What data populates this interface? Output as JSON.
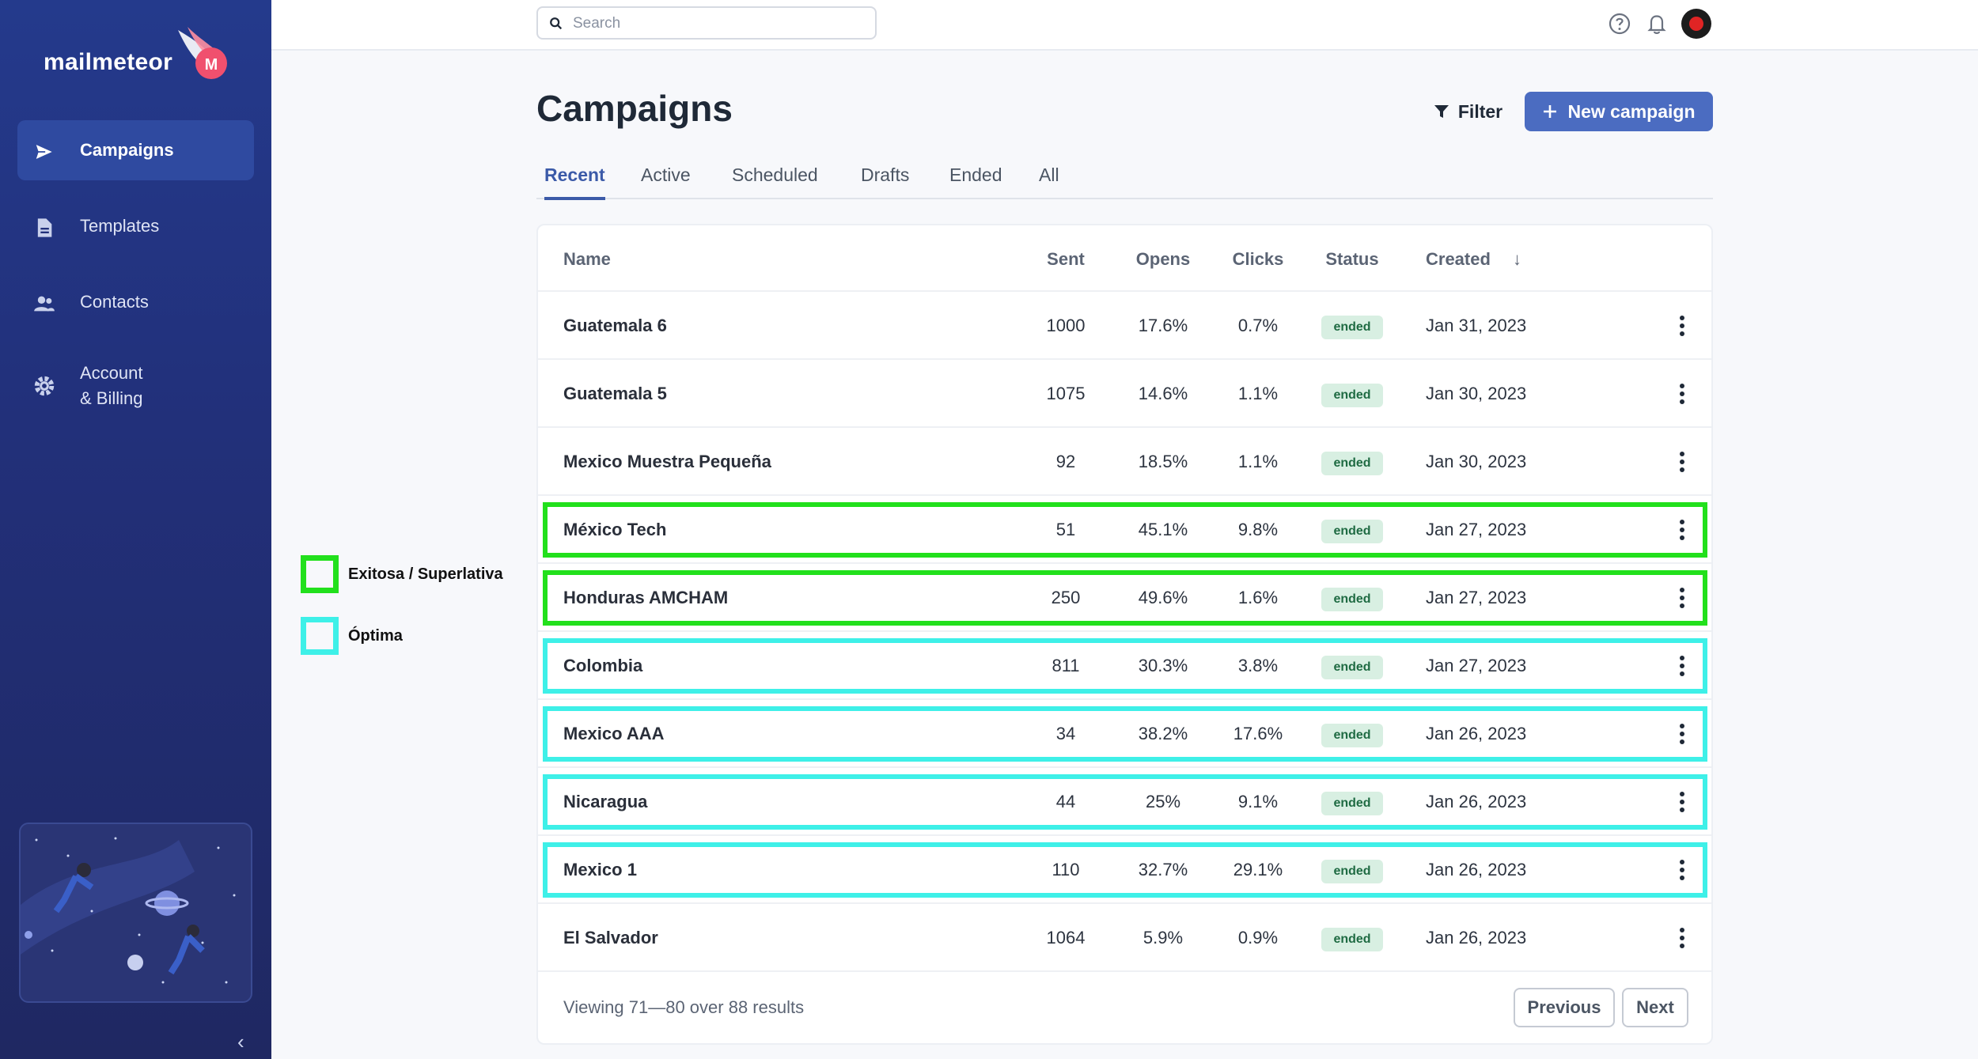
{
  "brand": {
    "name": "mailmeteor"
  },
  "sidebar": {
    "items": [
      {
        "label": "Campaigns",
        "icon": "send-icon",
        "active": true
      },
      {
        "label": "Templates",
        "icon": "document-icon",
        "active": false
      },
      {
        "label": "Contacts",
        "icon": "people-icon",
        "active": false
      },
      {
        "label_line1": "Account",
        "label_line2": "& Billing",
        "icon": "gear-icon",
        "active": false
      }
    ],
    "collapse_glyph": "‹"
  },
  "search": {
    "placeholder": "Search",
    "value": ""
  },
  "topbar": {
    "icons": [
      "help-icon",
      "bell-icon",
      "avatar"
    ]
  },
  "header": {
    "title": "Campaigns",
    "filter_label": "Filter",
    "new_campaign_label": "New campaign"
  },
  "tabs": [
    {
      "label": "Recent",
      "active": true
    },
    {
      "label": "Active",
      "active": false
    },
    {
      "label": "Scheduled",
      "active": false
    },
    {
      "label": "Drafts",
      "active": false
    },
    {
      "label": "Ended",
      "active": false
    },
    {
      "label": "All",
      "active": false
    }
  ],
  "table": {
    "columns": {
      "name": "Name",
      "sent": "Sent",
      "opens": "Opens",
      "clicks": "Clicks",
      "status": "Status",
      "created": "Created"
    },
    "sort_indicator": "↓",
    "rows": [
      {
        "name": "Guatemala 6",
        "sent": "1000",
        "opens": "17.6%",
        "clicks": "0.7%",
        "status": "ended",
        "created": "Jan 31, 2023",
        "highlight": ""
      },
      {
        "name": "Guatemala 5",
        "sent": "1075",
        "opens": "14.6%",
        "clicks": "1.1%",
        "status": "ended",
        "created": "Jan 30, 2023",
        "highlight": ""
      },
      {
        "name": "Mexico Muestra Pequeña",
        "sent": "92",
        "opens": "18.5%",
        "clicks": "1.1%",
        "status": "ended",
        "created": "Jan 30, 2023",
        "highlight": ""
      },
      {
        "name": "México Tech",
        "sent": "51",
        "opens": "45.1%",
        "clicks": "9.8%",
        "status": "ended",
        "created": "Jan 27, 2023",
        "highlight": "green"
      },
      {
        "name": "Honduras AMCHAM",
        "sent": "250",
        "opens": "49.6%",
        "clicks": "1.6%",
        "status": "ended",
        "created": "Jan 27, 2023",
        "highlight": "green"
      },
      {
        "name": "Colombia",
        "sent": "811",
        "opens": "30.3%",
        "clicks": "3.8%",
        "status": "ended",
        "created": "Jan 27, 2023",
        "highlight": "cyan"
      },
      {
        "name": "Mexico AAA",
        "sent": "34",
        "opens": "38.2%",
        "clicks": "17.6%",
        "status": "ended",
        "created": "Jan 26, 2023",
        "highlight": "cyan"
      },
      {
        "name": "Nicaragua",
        "sent": "44",
        "opens": "25%",
        "clicks": "9.1%",
        "status": "ended",
        "created": "Jan 26, 2023",
        "highlight": "cyan"
      },
      {
        "name": "Mexico 1",
        "sent": "110",
        "opens": "32.7%",
        "clicks": "29.1%",
        "status": "ended",
        "created": "Jan 26, 2023",
        "highlight": "cyan"
      },
      {
        "name": "El Salvador",
        "sent": "1064",
        "opens": "5.9%",
        "clicks": "0.9%",
        "status": "ended",
        "created": "Jan 26, 2023",
        "highlight": ""
      }
    ],
    "footer_text": "Viewing 71—80 over 88 results",
    "previous_label": "Previous",
    "next_label": "Next"
  },
  "legend": [
    {
      "label": "Exitosa / Superlativa",
      "color": "#22e01c"
    },
    {
      "label": "Óptima",
      "color": "#3ef0e8"
    }
  ]
}
